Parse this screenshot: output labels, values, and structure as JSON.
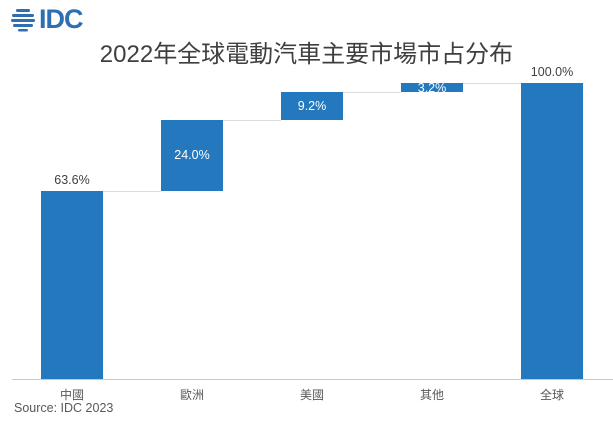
{
  "logo": {
    "text": "IDC",
    "color": "#2e6fb2",
    "icon": "globe-stripes-icon"
  },
  "chart_data": {
    "type": "waterfall",
    "title": "2022年全球電動汽車主要市場市占分布",
    "categories": [
      "中國",
      "歐洲",
      "美國",
      "其他",
      "全球"
    ],
    "values": [
      63.6,
      24.0,
      9.2,
      3.2,
      100.0
    ],
    "labels": [
      "63.6%",
      "24.0%",
      "9.2%",
      "3.2%",
      "100.0%"
    ],
    "bar_kinds": [
      "rise",
      "rise",
      "rise",
      "rise",
      "total"
    ],
    "label_positions": [
      "outside",
      "inside",
      "inside",
      "inside",
      "outside"
    ],
    "ylim": [
      0,
      100
    ],
    "grid": false,
    "legend": false,
    "bar_color": "#2478bd",
    "connector_color": "#dcdcdc",
    "axis_color": "#c8c8c8",
    "label_inside_color": "#ffffff",
    "label_outside_color": "#404040"
  },
  "source": "Source: IDC 2023"
}
